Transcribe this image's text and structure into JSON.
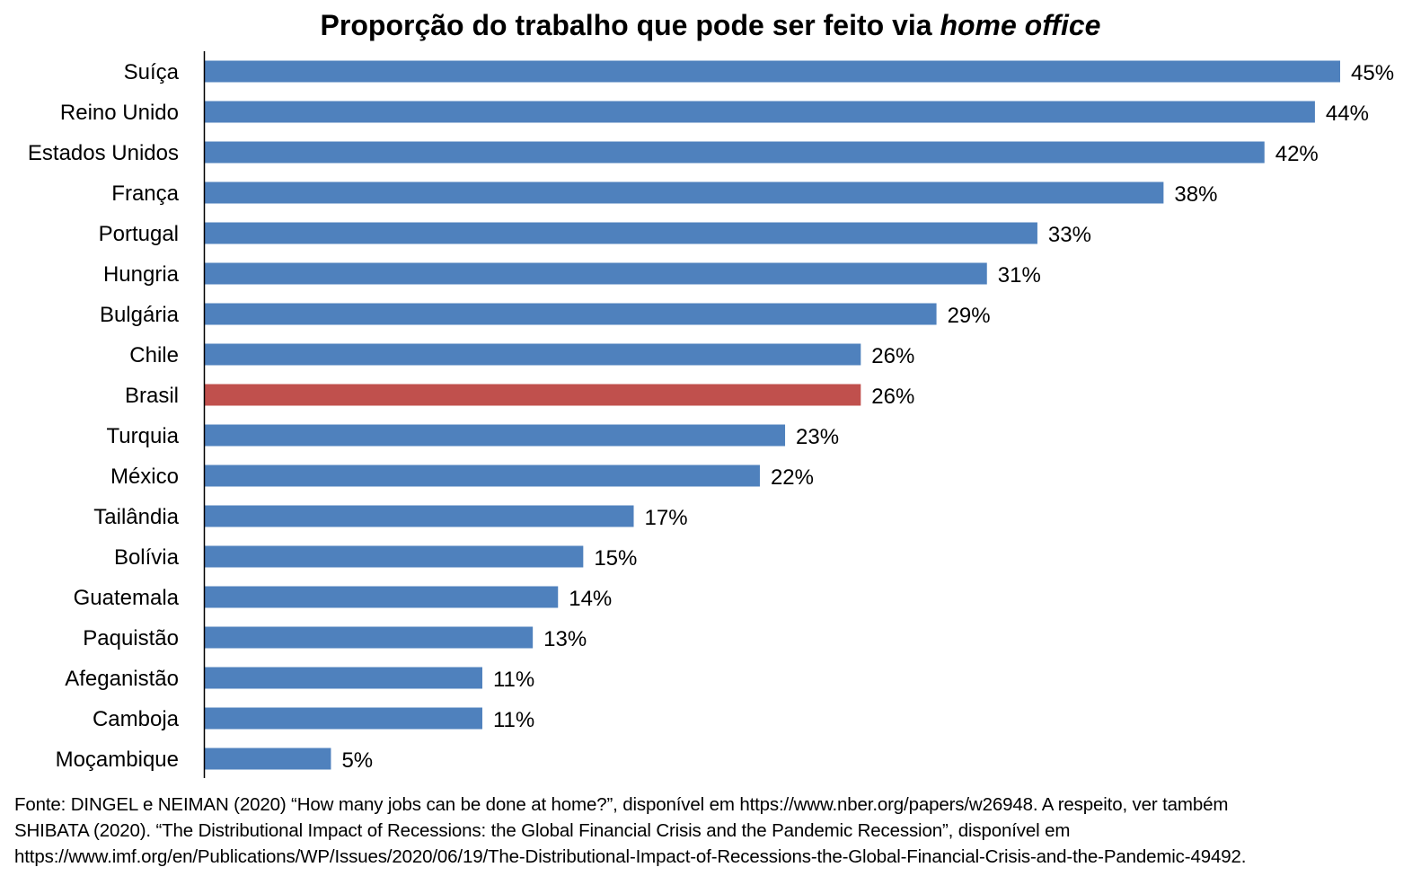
{
  "chart_data": {
    "type": "bar",
    "orientation": "horizontal",
    "title": "Proporção do trabalho que pode ser feito via",
    "title_italic": "home office",
    "categories": [
      "Suíça",
      "Reino Unido",
      "Estados Unidos",
      "França",
      "Portugal",
      "Hungria",
      "Bulgária",
      "Chile",
      "Brasil",
      "Turquia",
      "México",
      "Tailândia",
      "Bolívia",
      "Guatemala",
      "Paquistão",
      "Afeganistão",
      "Camboja",
      "Moçambique"
    ],
    "values": [
      45,
      44,
      42,
      38,
      33,
      31,
      29,
      26,
      26,
      23,
      22,
      17,
      15,
      14,
      13,
      11,
      11,
      5
    ],
    "value_labels": [
      "45%",
      "44%",
      "42%",
      "38%",
      "33%",
      "31%",
      "29%",
      "26%",
      "26%",
      "23%",
      "22%",
      "17%",
      "15%",
      "14%",
      "13%",
      "11%",
      "11%",
      "5%"
    ],
    "highlight_category": "Brasil",
    "colors": {
      "bar": "#4F81BD",
      "highlight": "#C0504D",
      "axis": "#000000"
    },
    "xlim": [
      0,
      45
    ],
    "grid": false,
    "legend": "none"
  },
  "source": {
    "lines": [
      "Fonte: DINGEL e NEIMAN (2020) “How many jobs can be done at home?”, disponível em https://www.nber.org/papers/w26948. A respeito, ver também",
      "SHIBATA (2020). “The Distributional Impact of Recessions: the Global Financial Crisis and the Pandemic Recession”, disponível em",
      "https://www.imf.org/en/Publications/WP/Issues/2020/06/19/The-Distributional-Impact-of-Recessions-the-Global-Financial-Crisis-and-the-Pandemic-49492."
    ]
  }
}
